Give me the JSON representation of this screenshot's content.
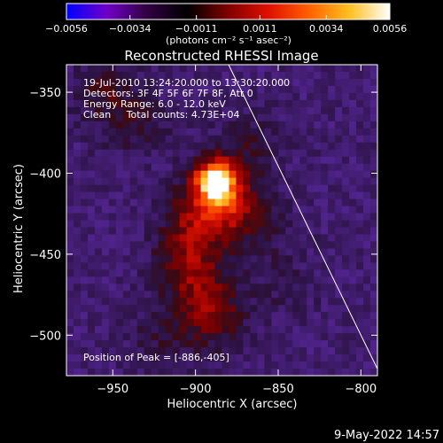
{
  "chart_data": {
    "type": "heatmap",
    "title": "Reconstructed RHESSI Image",
    "xlabel": "Heliocentric X (arcsec)",
    "ylabel": "Heliocentric Y (arcsec)",
    "xlim": [
      -978,
      -790
    ],
    "ylim": [
      -525,
      -333
    ],
    "x_ticks": [
      {
        "value": -950,
        "label": "−950"
      },
      {
        "value": -900,
        "label": "−900"
      },
      {
        "value": -850,
        "label": "−850"
      },
      {
        "value": -800,
        "label": "−800"
      }
    ],
    "y_ticks": [
      {
        "value": -350,
        "label": "−350"
      },
      {
        "value": -400,
        "label": "−400"
      },
      {
        "value": -450,
        "label": "−450"
      },
      {
        "value": -500,
        "label": "−500"
      }
    ],
    "colorbar": {
      "range": [
        -0.0056,
        0.0056
      ],
      "tick_labels": [
        {
          "value": -0.0056,
          "label": "−0.0056"
        },
        {
          "value": -0.0034,
          "label": "−0.0034"
        },
        {
          "value": -0.0011,
          "label": "−0.0011"
        },
        {
          "value": 0.0011,
          "label": "0.0011"
        },
        {
          "value": 0.0034,
          "label": "0.0034"
        },
        {
          "value": 0.0056,
          "label": "0.0056"
        }
      ],
      "units": "(photons cm⁻² s⁻¹ asec⁻²)",
      "colors": [
        "#0000ff",
        "#7000c8",
        "#300040",
        "#000000",
        "#800000",
        "#e01000",
        "#ff6000",
        "#ffc020",
        "#ffffff"
      ]
    },
    "annotations": [
      "19-Jul-2010 13:24:20.000 to 13:30:20.000",
      "Detectors: 3F 4F 5F 6F 7F 8F, Att 0",
      "Energy Range: 6.0 - 12.0 keV",
      "Clean     Total counts: 4.73E+04"
    ],
    "peak_label": "Position of Peak = [-886,-405]",
    "peak": {
      "x": -886,
      "y": -405
    },
    "limb_line": [
      [
        -880,
        -333
      ],
      [
        -788,
        -525
      ]
    ],
    "sources": [
      {
        "x": -888,
        "y": -404,
        "value": 0.0056
      },
      {
        "x": -882,
        "y": -418,
        "value": 0.003
      },
      {
        "x": -900,
        "y": -430,
        "value": 0.002
      },
      {
        "x": -905,
        "y": -455,
        "value": 0.0018
      },
      {
        "x": -895,
        "y": -475,
        "value": 0.0016
      },
      {
        "x": -888,
        "y": -492,
        "value": 0.0014
      },
      {
        "x": -955,
        "y": -350,
        "value": 0.0014
      },
      {
        "x": -935,
        "y": -370,
        "value": 0.001
      },
      {
        "x": -868,
        "y": -383,
        "value": 0.0011
      },
      {
        "x": -860,
        "y": -435,
        "value": 0.0008
      },
      {
        "x": -845,
        "y": -470,
        "value": 0.0006
      },
      {
        "x": -920,
        "y": -500,
        "value": 0.0009
      }
    ]
  },
  "timestamp": "9-May-2022 14:57"
}
